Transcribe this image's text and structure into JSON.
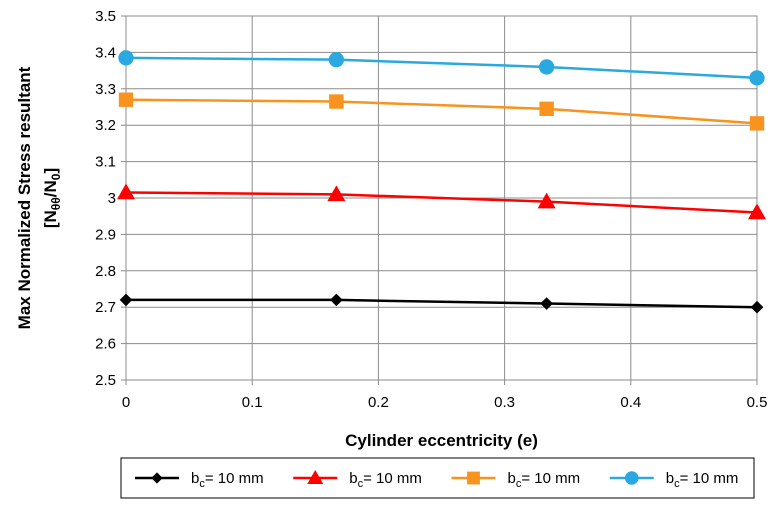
{
  "chart_data": {
    "type": "line",
    "title": "",
    "xlabel": "Cylinder eccentricity (e)",
    "ylabel_line1": "Max Normalized Stress resultant",
    "ylabel_line2": "[Nθθ/N0]",
    "xlim": [
      0,
      0.5
    ],
    "ylim": [
      2.5,
      3.5
    ],
    "x_ticks": [
      "0",
      "0.1",
      "0.2",
      "0.3",
      "0.4",
      "0.5"
    ],
    "y_ticks": [
      "2.5",
      "2.6",
      "2.7",
      "2.8",
      "2.9",
      "3",
      "3.1",
      "3.2",
      "3.3",
      "3.4",
      "3.5"
    ],
    "grid": true,
    "legend_position": "bottom",
    "x": [
      0,
      0.1667,
      0.3333,
      0.5
    ],
    "series": [
      {
        "name": "bc= 10 mm",
        "legend_label": "b",
        "legend_sub": "c",
        "legend_rest": "= 10 mm",
        "color": "#000000",
        "marker": "diamond",
        "values": [
          2.72,
          2.72,
          2.71,
          2.7
        ]
      },
      {
        "name": "bc= 10 mm",
        "legend_label": "b",
        "legend_sub": "c",
        "legend_rest": "= 10 mm",
        "color": "#ff0000",
        "marker": "triangle",
        "values": [
          3.015,
          3.01,
          2.99,
          2.96
        ]
      },
      {
        "name": "bc= 10 mm",
        "legend_label": "b",
        "legend_sub": "c",
        "legend_rest": "= 10 mm",
        "color": "#f7931e",
        "marker": "square",
        "values": [
          3.27,
          3.265,
          3.245,
          3.205
        ]
      },
      {
        "name": "bc= 10 mm",
        "legend_label": "b",
        "legend_sub": "c",
        "legend_rest": "= 10 mm",
        "color": "#29a9e0",
        "marker": "circle",
        "values": [
          3.385,
          3.38,
          3.36,
          3.33
        ]
      }
    ]
  }
}
